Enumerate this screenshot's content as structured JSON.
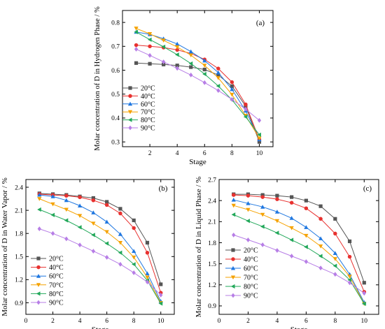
{
  "series_style": [
    {
      "color": "#555555",
      "marker": "square"
    },
    {
      "color": "#e8312f",
      "marker": "circle"
    },
    {
      "color": "#1f77e0",
      "marker": "triangle-up"
    },
    {
      "color": "#f5a200",
      "marker": "triangle-down"
    },
    {
      "color": "#22a85a",
      "marker": "triangle-left"
    },
    {
      "color": "#b77ee6",
      "marker": "diamond"
    }
  ],
  "chart_data": [
    {
      "type": "line",
      "panel_label": "(a)",
      "xlabel": "Stage",
      "ylabel": "Molar concentration of D in Hydrogen Phase / %",
      "xlim": [
        0,
        11
      ],
      "ylim": [
        0.28,
        0.85
      ],
      "xticks": [
        "2",
        "4",
        "6",
        "8",
        "10"
      ],
      "yticks": [
        "0.3",
        "0.4",
        "0.5",
        "0.6",
        "0.7",
        "0.8"
      ],
      "grid": false,
      "legend_position": "bottom-left",
      "x": [
        1,
        2,
        3,
        4,
        5,
        6,
        7,
        8,
        9,
        10
      ],
      "series": [
        {
          "name": "20°C",
          "values": [
            0.63,
            0.627,
            0.624,
            0.62,
            0.613,
            0.603,
            0.58,
            0.533,
            0.45,
            0.3
          ]
        },
        {
          "name": "40°C",
          "values": [
            0.705,
            0.7,
            0.695,
            0.685,
            0.67,
            0.645,
            0.607,
            0.55,
            0.457,
            0.31
          ]
        },
        {
          "name": "60°C",
          "values": [
            0.76,
            0.75,
            0.732,
            0.71,
            0.678,
            0.64,
            0.59,
            0.52,
            0.43,
            0.31
          ]
        },
        {
          "name": "70°C",
          "values": [
            0.775,
            0.752,
            0.725,
            0.697,
            0.663,
            0.62,
            0.568,
            0.498,
            0.41,
            0.315
          ]
        },
        {
          "name": "80°C",
          "values": [
            0.76,
            0.728,
            0.698,
            0.665,
            0.628,
            0.584,
            0.534,
            0.476,
            0.405,
            0.33
          ]
        },
        {
          "name": "90°C",
          "values": [
            0.688,
            0.662,
            0.635,
            0.608,
            0.58,
            0.548,
            0.515,
            0.478,
            0.437,
            0.39
          ]
        }
      ]
    },
    {
      "type": "line",
      "panel_label": "(b)",
      "xlabel": "Stage",
      "ylabel": "Molar concentration of D in Water Vapor / %",
      "xlim": [
        0,
        11
      ],
      "ylim": [
        0.75,
        2.5
      ],
      "xticks": [
        "0",
        "2",
        "4",
        "6",
        "8",
        "10"
      ],
      "yticks": [
        "0.9",
        "1.2",
        "1.5",
        "1.8",
        "2.1",
        "2.4"
      ],
      "grid": false,
      "legend_position": "bottom-left",
      "x": [
        1,
        2,
        3,
        4,
        5,
        6,
        7,
        8,
        9,
        10
      ],
      "series": [
        {
          "name": "20°C",
          "values": [
            2.32,
            2.31,
            2.3,
            2.28,
            2.26,
            2.21,
            2.12,
            1.97,
            1.68,
            1.14
          ]
        },
        {
          "name": "40°C",
          "values": [
            2.31,
            2.3,
            2.29,
            2.27,
            2.23,
            2.17,
            2.06,
            1.87,
            1.55,
            1.03
          ]
        },
        {
          "name": "60°C",
          "values": [
            2.3,
            2.28,
            2.23,
            2.16,
            2.07,
            1.95,
            1.79,
            1.57,
            1.28,
            0.92
          ]
        },
        {
          "name": "70°C",
          "values": [
            2.25,
            2.18,
            2.11,
            2.03,
            1.93,
            1.82,
            1.68,
            1.49,
            1.23,
            0.9
          ]
        },
        {
          "name": "80°C",
          "values": [
            2.11,
            2.04,
            1.97,
            1.88,
            1.78,
            1.67,
            1.55,
            1.4,
            1.19,
            0.89
          ]
        },
        {
          "name": "90°C",
          "values": [
            1.86,
            1.8,
            1.73,
            1.65,
            1.57,
            1.49,
            1.4,
            1.29,
            1.17,
            1.0
          ]
        }
      ]
    },
    {
      "type": "line",
      "panel_label": "(c)",
      "xlabel": "Stage",
      "ylabel": "Molar concentration of D in Liquid Phase / %",
      "xlim": [
        0,
        11
      ],
      "ylim": [
        0.78,
        2.7
      ],
      "xticks": [
        "0",
        "2",
        "4",
        "6",
        "8",
        "10"
      ],
      "yticks": [
        "0.9",
        "1.2",
        "1.5",
        "1.8",
        "2.1",
        "2.4",
        "2.7"
      ],
      "grid": false,
      "legend_position": "bottom-left",
      "x": [
        1,
        2,
        3,
        4,
        5,
        6,
        7,
        8,
        9,
        10
      ],
      "series": [
        {
          "name": "20°C",
          "values": [
            2.49,
            2.49,
            2.48,
            2.47,
            2.45,
            2.4,
            2.32,
            2.14,
            1.82,
            1.23
          ]
        },
        {
          "name": "40°C",
          "values": [
            2.48,
            2.47,
            2.45,
            2.42,
            2.37,
            2.29,
            2.14,
            1.93,
            1.6,
            1.1
          ]
        },
        {
          "name": "60°C",
          "values": [
            2.41,
            2.36,
            2.31,
            2.24,
            2.15,
            2.02,
            1.86,
            1.65,
            1.35,
            0.95
          ]
        },
        {
          "name": "70°C",
          "values": [
            2.33,
            2.27,
            2.2,
            2.11,
            2.01,
            1.9,
            1.75,
            1.57,
            1.32,
            0.93
          ]
        },
        {
          "name": "80°C",
          "values": [
            2.2,
            2.11,
            2.03,
            1.94,
            1.84,
            1.74,
            1.61,
            1.47,
            1.27,
            0.93
          ]
        },
        {
          "name": "90°C",
          "values": [
            1.91,
            1.84,
            1.77,
            1.69,
            1.61,
            1.53,
            1.44,
            1.35,
            1.23,
            1.08
          ]
        }
      ]
    }
  ]
}
